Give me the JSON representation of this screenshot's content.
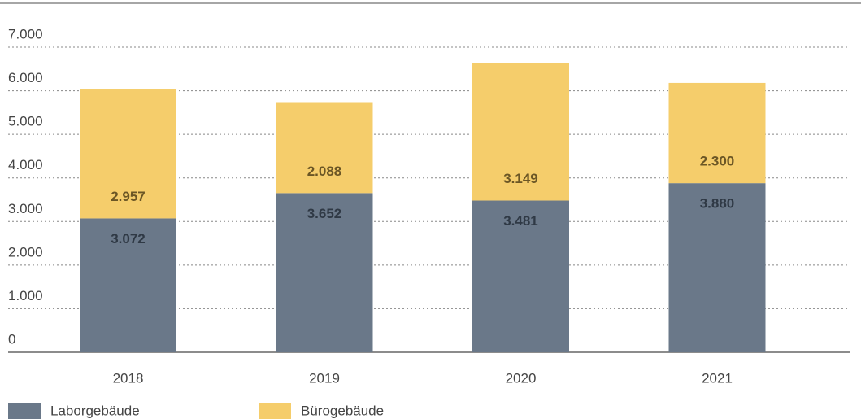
{
  "chart_data": {
    "type": "stacked_bar",
    "categories": [
      "2018",
      "2019",
      "2020",
      "2021"
    ],
    "series": [
      {
        "name": "Laborgebäude",
        "color": "#6a7889",
        "values": [
          3072,
          3652,
          3481,
          3880
        ],
        "value_labels": [
          "3.072",
          "3.652",
          "3.481",
          "3.880"
        ]
      },
      {
        "name": "Bürogebäude",
        "color": "#f5cd6b",
        "values": [
          2957,
          2088,
          3149,
          2300
        ],
        "value_labels": [
          "2.957",
          "2.088",
          "3.149",
          "2.300"
        ]
      }
    ],
    "ylim": [
      0,
      7000
    ],
    "yticks": [
      0,
      {
        "value": 1000,
        "label": "1.000"
      },
      {
        "value": 2000,
        "label": "2.000"
      },
      {
        "value": 3000,
        "label": "3.000"
      },
      {
        "value": 4000,
        "label": "4.000"
      },
      {
        "value": 5000,
        "label": "5.000"
      },
      {
        "value": 6000,
        "label": "6.000"
      },
      {
        "value": 7000,
        "label": "7.000"
      }
    ],
    "grid": true,
    "legend": "bottom"
  }
}
